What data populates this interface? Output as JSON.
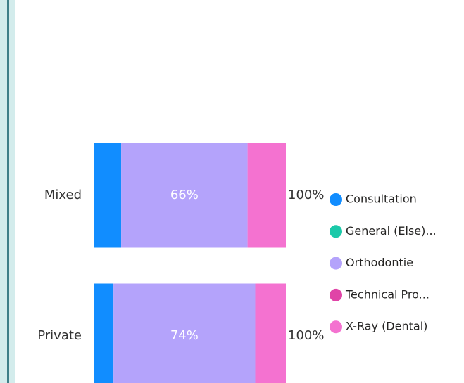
{
  "chart_data": {
    "type": "stacked-bar-100",
    "categories": [
      "Mixed",
      "Private"
    ],
    "series": [
      {
        "name": "Consultation",
        "color": "#118DFF",
        "values": [
          14,
          10
        ]
      },
      {
        "name": "General (Else)...",
        "color": "#1BC9A9",
        "values": [
          0,
          0
        ]
      },
      {
        "name": "Orthodontie",
        "color": "#B4A3FB",
        "values": [
          66,
          74
        ],
        "value_labels": [
          "66%",
          "74%"
        ]
      },
      {
        "name": "Technical Pro...",
        "color": "#E044A7",
        "values": [
          0,
          0
        ]
      },
      {
        "name": "X-Ray (Dental)",
        "color": "#F472D0",
        "values": [
          20,
          16
        ]
      }
    ],
    "totals": [
      100,
      100
    ],
    "total_labels": [
      "100%",
      "100%"
    ]
  }
}
